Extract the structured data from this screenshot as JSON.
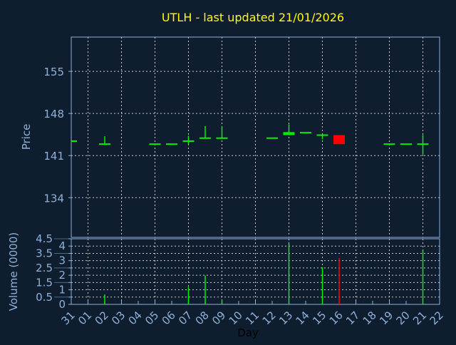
{
  "colors": {
    "background": "#0f1e2f",
    "axis": "#8fb0d8",
    "title": "#ffff00",
    "up": "#00ee00",
    "down": "#ff0000",
    "grid": "#c8c8c8",
    "xlabel": "#000000"
  },
  "chart_data": [
    {
      "type": "candlestick",
      "title": "UTLH - last updated 21/01/2026",
      "ylabel": "Price",
      "ylim": [
        127.4,
        160.7
      ],
      "yticks": [
        "155",
        "148",
        "141",
        "134"
      ],
      "grid": true,
      "candles": [
        {
          "day": "31",
          "open": 143.4,
          "close": 143.4,
          "high": 143.4,
          "low": 143.4
        },
        {
          "day": "02",
          "open": 142.9,
          "close": 142.9,
          "high": 144.2,
          "low": 142.9
        },
        {
          "day": "05",
          "open": 142.9,
          "close": 142.9,
          "high": 142.9,
          "low": 142.9
        },
        {
          "day": "06",
          "open": 142.9,
          "close": 142.9,
          "high": 142.9,
          "low": 142.9
        },
        {
          "day": "07",
          "open": 143.4,
          "close": 143.4,
          "high": 144.3,
          "low": 142.9
        },
        {
          "day": "08",
          "open": 143.9,
          "close": 143.9,
          "high": 145.9,
          "low": 143.9
        },
        {
          "day": "09",
          "open": 143.9,
          "close": 143.9,
          "high": 145.9,
          "low": 143.9
        },
        {
          "day": "12",
          "open": 143.9,
          "close": 143.9,
          "high": 143.9,
          "low": 143.9
        },
        {
          "day": "13",
          "open": 144.4,
          "close": 144.9,
          "high": 146.2,
          "low": 144.4
        },
        {
          "day": "14",
          "open": 144.8,
          "close": 144.8,
          "high": 144.8,
          "low": 144.8
        },
        {
          "day": "15",
          "open": 144.4,
          "close": 144.4,
          "high": 144.4,
          "low": 143.7
        },
        {
          "day": "16",
          "open": 144.4,
          "close": 142.9,
          "high": 144.4,
          "low": 142.9
        },
        {
          "day": "19",
          "open": 142.9,
          "close": 142.9,
          "high": 142.9,
          "low": 142.9
        },
        {
          "day": "20",
          "open": 142.9,
          "close": 142.9,
          "high": 142.9,
          "low": 142.9
        },
        {
          "day": "21",
          "open": 142.9,
          "close": 142.9,
          "high": 144.4,
          "low": 141.2
        }
      ]
    },
    {
      "type": "bar",
      "ylabel": "Volume (0000)",
      "xlabel": "Day",
      "ylim": [
        0,
        4.5
      ],
      "yticks": [
        "0",
        "0.5",
        "1",
        "1.5",
        "2",
        "2.5",
        "3",
        "3.5",
        "4",
        "4.5"
      ],
      "categories": [
        "31",
        "01",
        "02",
        "03",
        "04",
        "05",
        "06",
        "07",
        "08",
        "09",
        "10",
        "11",
        "12",
        "13",
        "14",
        "15",
        "16",
        "17",
        "18",
        "19",
        "20",
        "21",
        "22"
      ],
      "grid": true,
      "bars": [
        {
          "day": "02",
          "value": 0.68,
          "direction": "up"
        },
        {
          "day": "07",
          "value": 1.2,
          "direction": "up"
        },
        {
          "day": "08",
          "value": 1.98,
          "direction": "up"
        },
        {
          "day": "09",
          "value": 0.26,
          "direction": "up"
        },
        {
          "day": "13",
          "value": 4.16,
          "direction": "up"
        },
        {
          "day": "15",
          "value": 2.55,
          "direction": "up"
        },
        {
          "day": "16",
          "value": 3.18,
          "direction": "down"
        },
        {
          "day": "21",
          "value": 3.77,
          "direction": "up"
        }
      ]
    }
  ]
}
